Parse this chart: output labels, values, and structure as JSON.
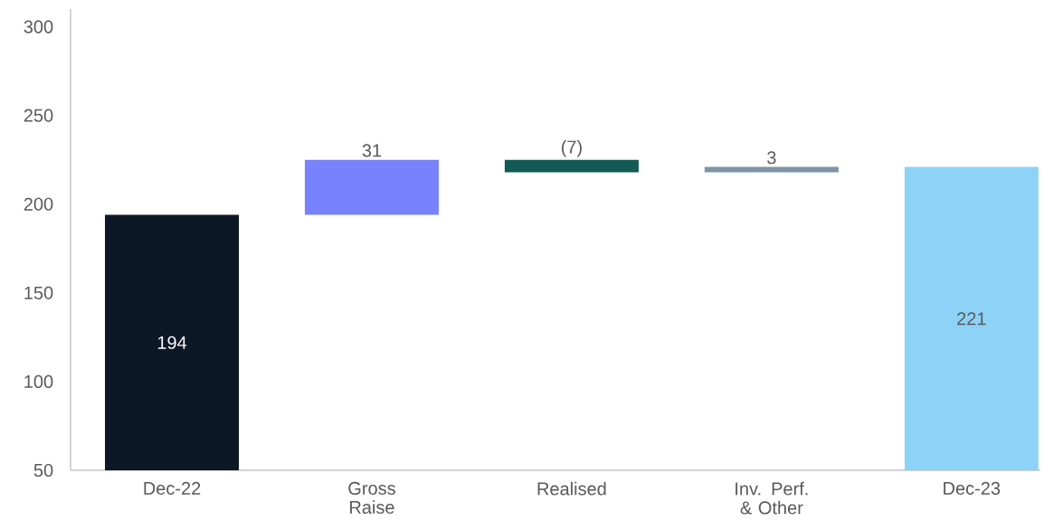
{
  "chart_data": {
    "type": "bar",
    "categories": [
      "Dec-22",
      "Gross Raise",
      "Realised",
      "Inv. Perf. & Other",
      "Dec-23"
    ],
    "values": [
      194,
      31,
      -7,
      3,
      221
    ],
    "base": [
      null,
      194,
      225,
      218,
      null
    ],
    "colors": [
      "#0d1826",
      "#7782fc",
      "#135a55",
      "#7f94a6",
      "#8dd3f7"
    ],
    "value_labels": [
      "194",
      "31",
      "(7)",
      "3",
      "221"
    ],
    "ylim": [
      50,
      310
    ],
    "yticks": [
      50,
      100,
      150,
      200,
      250,
      300
    ]
  }
}
